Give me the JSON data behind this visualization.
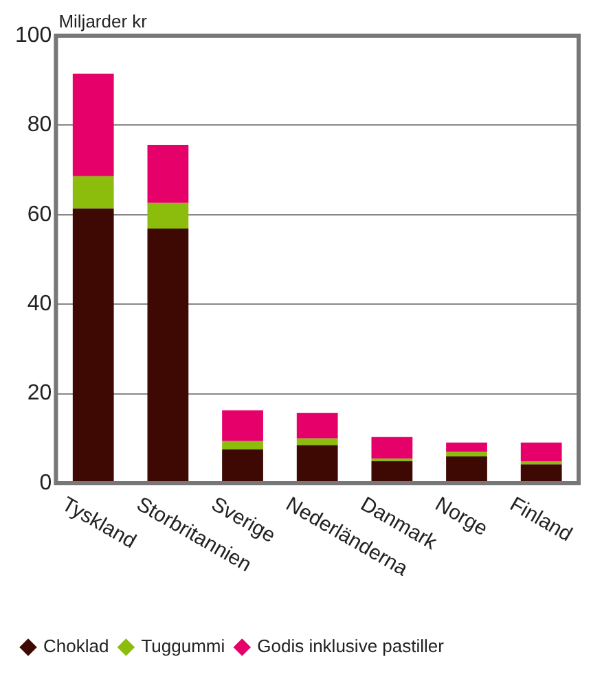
{
  "chart_data": {
    "type": "bar",
    "ylabel": "Miljarder kr",
    "categories": [
      "Tyskland",
      "Storbritannien",
      "Sverige",
      "Nederländerna",
      "Danmark",
      "Norge",
      "Finland"
    ],
    "series": [
      {
        "name": "Choklad",
        "color": "#3d0902",
        "values": [
          61.4,
          56.9,
          7.6,
          8.5,
          4.9,
          6.0,
          4.2
        ]
      },
      {
        "name": "Tuggummi",
        "color": "#8cbc0c",
        "values": [
          7.2,
          5.7,
          1.8,
          1.5,
          0.6,
          1.0,
          0.7
        ]
      },
      {
        "name": "Godis inklusive pastiller",
        "color": "#e5006a",
        "values": [
          22.9,
          13.0,
          6.9,
          5.7,
          4.8,
          2.1,
          4.2
        ]
      }
    ],
    "stacked": true,
    "ylim": [
      0,
      100
    ],
    "yticks": [
      0,
      20,
      40,
      60,
      80,
      100
    ],
    "grid": "y",
    "legend": "bottom",
    "marker": "diamond"
  }
}
